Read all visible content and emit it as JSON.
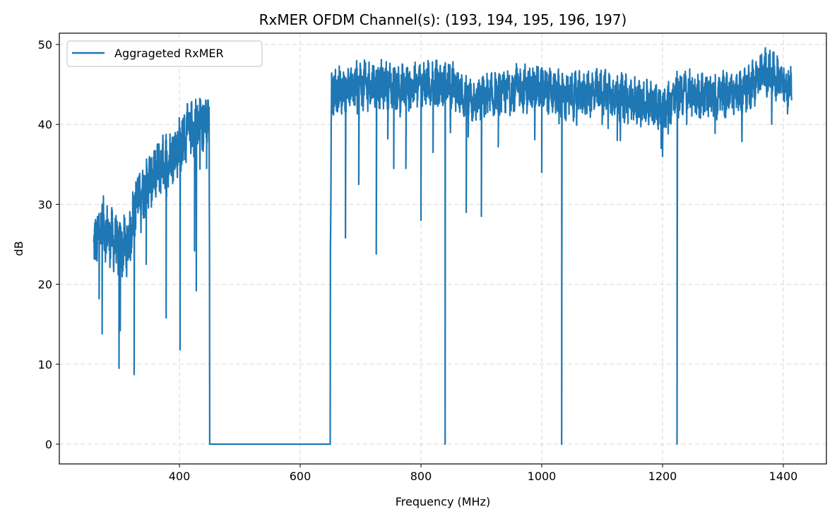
{
  "chart_data": {
    "type": "line",
    "title": "RxMER OFDM Channel(s): (193, 194, 195, 196, 197)",
    "xlabel": "Frequency (MHz)",
    "ylabel": "dB",
    "xlim": [
      204,
      1474
    ],
    "ylim": [
      -2.5,
      51.5
    ],
    "xticks": [
      400,
      600,
      800,
      1000,
      1200,
      1400
    ],
    "yticks": [
      0,
      10,
      20,
      30,
      40,
      50
    ],
    "grid": true,
    "legend": {
      "position": "upper left",
      "entries": [
        "Aggregated RxMER"
      ]
    },
    "legend_label": "Aggrageted RxMER",
    "color": "#1f77b4",
    "series": [
      {
        "name": "Aggrageted RxMER",
        "envelope": [
          [
            258,
            24.5
          ],
          [
            270,
            27.5
          ],
          [
            285,
            26
          ],
          [
            300,
            24.5
          ],
          [
            315,
            25
          ],
          [
            330,
            31
          ],
          [
            350,
            33
          ],
          [
            370,
            35
          ],
          [
            390,
            36.5
          ],
          [
            410,
            38.5
          ],
          [
            430,
            40
          ],
          [
            449,
            40.5
          ],
          [
            451,
            0
          ],
          [
            648,
            0
          ],
          [
            652,
            44
          ],
          [
            700,
            45
          ],
          [
            740,
            45
          ],
          [
            760,
            44.5
          ],
          [
            800,
            45
          ],
          [
            850,
            45
          ],
          [
            880,
            43
          ],
          [
            920,
            43.5
          ],
          [
            960,
            44.5
          ],
          [
            1000,
            44.5
          ],
          [
            1040,
            43.5
          ],
          [
            1100,
            44
          ],
          [
            1150,
            43
          ],
          [
            1180,
            42.5
          ],
          [
            1200,
            42
          ],
          [
            1230,
            44
          ],
          [
            1280,
            43.5
          ],
          [
            1330,
            44
          ],
          [
            1370,
            46.5
          ],
          [
            1400,
            45.5
          ],
          [
            1414,
            45
          ]
        ],
        "dips": [
          [
            267,
            18.2
          ],
          [
            272,
            13.8
          ],
          [
            300,
            9.5
          ],
          [
            302,
            14.2
          ],
          [
            325,
            8.7
          ],
          [
            345,
            22.5
          ],
          [
            378,
            15.8
          ],
          [
            401,
            11.8
          ],
          [
            425,
            24.2
          ],
          [
            428,
            19.2
          ],
          [
            445,
            34.5
          ],
          [
            675,
            25.8
          ],
          [
            697,
            32.5
          ],
          [
            726,
            23.8
          ],
          [
            745,
            38.2
          ],
          [
            755,
            34.5
          ],
          [
            775,
            34.5
          ],
          [
            800,
            28
          ],
          [
            820,
            36.5
          ],
          [
            840,
            0
          ],
          [
            875,
            29
          ],
          [
            900,
            28.5
          ],
          [
            928,
            37.2
          ],
          [
            1000,
            34
          ],
          [
            1033,
            0
          ],
          [
            1040,
            40.5
          ],
          [
            1100,
            40
          ],
          [
            1125,
            38
          ],
          [
            1200,
            36
          ],
          [
            1224,
            0
          ],
          [
            1240,
            40
          ]
        ],
        "zero_band_MHz": [
          450,
          650
        ]
      }
    ]
  }
}
